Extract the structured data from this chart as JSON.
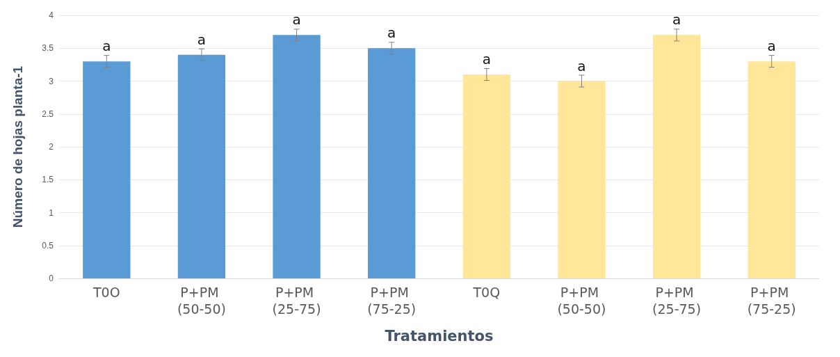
{
  "chart_data": {
    "type": "bar",
    "xlabel": "Tratamientos",
    "ylabel": "Número de hojas planta-1",
    "categories": [
      "T0O",
      "P+PM (50-50)",
      "P+PM (25-75)",
      "P+PM (75-25)",
      "T0Q",
      "P+PM (50-50)",
      "P+PM (25-75)",
      "P+PM (75-25)"
    ],
    "values": [
      3.3,
      3.4,
      3.7,
      3.5,
      3.1,
      3.0,
      3.7,
      3.3
    ],
    "errors": [
      0.09,
      0.09,
      0.09,
      0.09,
      0.09,
      0.09,
      0.09,
      0.09
    ],
    "value_labels": [
      "a",
      "a",
      "a",
      "a",
      "a",
      "a",
      "a",
      "a"
    ],
    "colors": [
      "#5b9bd5",
      "#5b9bd5",
      "#5b9bd5",
      "#5b9bd5",
      "#ffe699",
      "#ffe699",
      "#ffe699",
      "#ffe699"
    ],
    "ylim": [
      0,
      4
    ],
    "yticks": [
      0,
      0.5,
      1,
      1.5,
      2,
      2.5,
      3,
      3.5,
      4
    ],
    "grid": "y"
  }
}
